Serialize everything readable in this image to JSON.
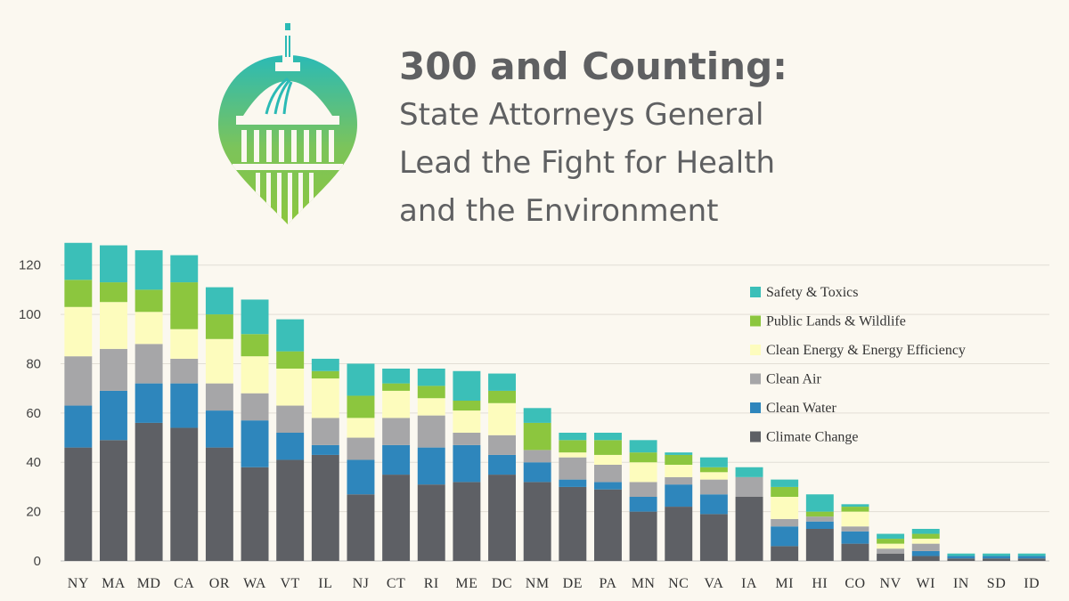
{
  "header": {
    "title": "300 and Counting:",
    "subtitle_lines": [
      "State Attorneys General",
      "Lead the Fight for Health",
      "and the Environment"
    ]
  },
  "logo": {
    "icon": "capitol-dome-pin-icon",
    "colors": [
      "#3bbfb8",
      "#8cc63e"
    ]
  },
  "chart_data": {
    "type": "bar",
    "stacked": true,
    "title": "",
    "xlabel": "",
    "ylabel": "",
    "ylim": [
      0,
      130
    ],
    "yticks": [
      0,
      20,
      40,
      60,
      80,
      100,
      120
    ],
    "grid": true,
    "legend_position": "right",
    "categories": [
      "NY",
      "MA",
      "MD",
      "CA",
      "OR",
      "WA",
      "VT",
      "IL",
      "NJ",
      "CT",
      "RI",
      "ME",
      "DC",
      "NM",
      "DE",
      "PA",
      "MN",
      "NC",
      "VA",
      "IA",
      "MI",
      "HI",
      "CO",
      "NV",
      "WI",
      "IN",
      "SD",
      "ID"
    ],
    "series": [
      {
        "name": "Climate Change",
        "color": "#5e6065",
        "values": [
          46,
          49,
          56,
          54,
          46,
          38,
          41,
          43,
          27,
          35,
          31,
          32,
          35,
          32,
          30,
          29,
          20,
          22,
          19,
          26,
          6,
          13,
          7,
          3,
          2,
          1,
          1,
          1
        ]
      },
      {
        "name": "Clean Water",
        "color": "#2e86bc",
        "values": [
          17,
          20,
          16,
          18,
          15,
          19,
          11,
          4,
          14,
          12,
          15,
          15,
          8,
          8,
          3,
          3,
          6,
          9,
          8,
          0,
          8,
          3,
          5,
          0,
          2,
          1,
          1,
          1
        ]
      },
      {
        "name": "Clean Air",
        "color": "#a6a6a8",
        "values": [
          20,
          17,
          16,
          10,
          11,
          11,
          11,
          11,
          9,
          11,
          13,
          5,
          8,
          5,
          9,
          7,
          6,
          3,
          6,
          8,
          3,
          2,
          2,
          2,
          3,
          0,
          0,
          0
        ]
      },
      {
        "name": "Clean Energy & Energy Efficiency",
        "color": "#fdfcbd",
        "values": [
          20,
          19,
          13,
          12,
          18,
          15,
          15,
          16,
          8,
          11,
          7,
          9,
          13,
          0,
          2,
          4,
          8,
          5,
          3,
          0,
          9,
          0,
          6,
          2,
          2,
          0,
          0,
          0
        ]
      },
      {
        "name": "Public Lands & Wildlife",
        "color": "#8cc63e",
        "values": [
          11,
          8,
          9,
          19,
          10,
          9,
          7,
          3,
          9,
          3,
          5,
          4,
          5,
          11,
          5,
          6,
          4,
          4,
          2,
          0,
          4,
          2,
          2,
          2,
          2,
          0,
          0,
          0
        ]
      },
      {
        "name": "Safety & Toxics",
        "color": "#3bbfb8",
        "values": [
          15,
          15,
          16,
          11,
          11,
          14,
          13,
          5,
          13,
          6,
          7,
          12,
          7,
          6,
          3,
          3,
          5,
          1,
          4,
          4,
          3,
          7,
          1,
          2,
          2,
          1,
          1,
          1
        ]
      }
    ]
  }
}
